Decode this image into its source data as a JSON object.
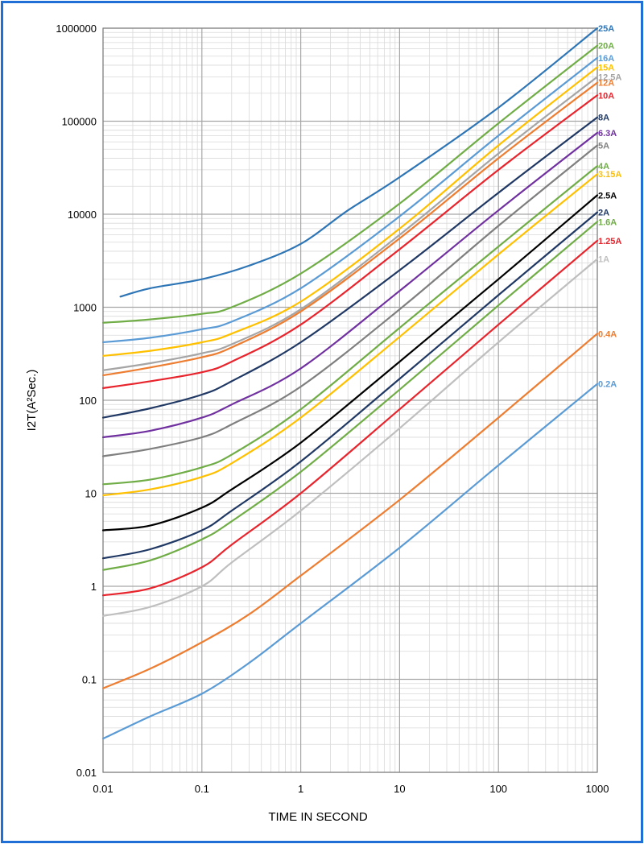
{
  "chart_data": {
    "type": "line",
    "xlabel": "TIME IN SECOND",
    "ylabel": "I2T(A²Sec.)",
    "xscale": "log",
    "yscale": "log",
    "xlim": [
      0.01,
      1000
    ],
    "ylim": [
      0.01,
      1000000
    ],
    "x_tick_labels": [
      "0.01",
      "0.1",
      "1",
      "10",
      "100",
      "1000"
    ],
    "y_tick_labels": [
      "0.01",
      "0.1",
      "1",
      "10",
      "100",
      "1000",
      "10000",
      "100000",
      "1000000"
    ],
    "grid": "major and minor",
    "legend": "labels at right end of each curve",
    "series": [
      {
        "name": "25A",
        "color": "#2e75b6",
        "x": [
          0.015,
          0.03,
          0.1,
          0.3,
          1,
          3,
          10,
          100,
          1000
        ],
        "y": [
          1300,
          1600,
          2000,
          2800,
          4800,
          11000,
          25000,
          140000,
          1000000
        ]
      },
      {
        "name": "20A",
        "color": "#70ad47",
        "x": [
          0.01,
          0.03,
          0.1,
          0.2,
          1,
          10,
          100,
          1000
        ],
        "y": [
          680,
          740,
          850,
          1000,
          2300,
          13000,
          95000,
          650000
        ]
      },
      {
        "name": "16A",
        "color": "#5b9bd5",
        "x": [
          0.01,
          0.03,
          0.1,
          0.2,
          1,
          10,
          100,
          1000
        ],
        "y": [
          420,
          470,
          580,
          700,
          1600,
          9500,
          70000,
          480000
        ]
      },
      {
        "name": "15A",
        "color": "#ffc000",
        "x": [
          0.01,
          0.03,
          0.1,
          0.2,
          1,
          10,
          100,
          1000
        ],
        "y": [
          300,
          340,
          420,
          520,
          1150,
          7000,
          55000,
          380000
        ]
      },
      {
        "name": "12.5A",
        "color": "#a5a5a5",
        "x": [
          0.01,
          0.03,
          0.1,
          0.2,
          1,
          10,
          100,
          1000
        ],
        "y": [
          210,
          250,
          320,
          400,
          950,
          6000,
          45000,
          300000
        ]
      },
      {
        "name": "12A",
        "color": "#ed7d31",
        "x": [
          0.01,
          0.03,
          0.1,
          0.2,
          1,
          10,
          100,
          1000
        ],
        "y": [
          185,
          225,
          290,
          370,
          900,
          5500,
          40000,
          260000
        ]
      },
      {
        "name": "10A",
        "color": "#e8242d",
        "x": [
          0.01,
          0.03,
          0.1,
          0.2,
          1,
          10,
          100,
          1000
        ],
        "y": [
          135,
          160,
          200,
          260,
          650,
          4200,
          30000,
          190000
        ]
      },
      {
        "name": "8A",
        "color": "#203864",
        "x": [
          0.01,
          0.03,
          0.1,
          0.2,
          1,
          10,
          100,
          1000
        ],
        "y": [
          65,
          82,
          115,
          160,
          420,
          2500,
          17000,
          110000
        ]
      },
      {
        "name": "6.3A",
        "color": "#7030a0",
        "x": [
          0.01,
          0.03,
          0.1,
          0.2,
          1,
          10,
          100,
          1000
        ],
        "y": [
          40,
          47,
          65,
          90,
          220,
          1500,
          11000,
          75000
        ]
      },
      {
        "name": "5A",
        "color": "#7f7f7f",
        "x": [
          0.01,
          0.03,
          0.1,
          0.2,
          1,
          10,
          100,
          1000
        ],
        "y": [
          25,
          30,
          40,
          55,
          140,
          950,
          7500,
          55000
        ]
      },
      {
        "name": "4A",
        "color": "#70ad47",
        "x": [
          0.01,
          0.03,
          0.1,
          0.2,
          1,
          10,
          100,
          1000
        ],
        "y": [
          12.5,
          14,
          19,
          26,
          80,
          600,
          4500,
          33000
        ]
      },
      {
        "name": "3.15A",
        "color": "#ffc000",
        "x": [
          0.01,
          0.03,
          0.1,
          0.2,
          1,
          10,
          100,
          1000
        ],
        "y": [
          9.5,
          11,
          15,
          21,
          65,
          480,
          3700,
          27000
        ]
      },
      {
        "name": "2.5A",
        "color": "#000000",
        "x": [
          0.01,
          0.03,
          0.1,
          0.2,
          1,
          10,
          100,
          1000
        ],
        "y": [
          4,
          4.5,
          7,
          11,
          35,
          260,
          2000,
          16000
        ]
      },
      {
        "name": "2A",
        "color": "#203864",
        "x": [
          0.01,
          0.03,
          0.1,
          0.2,
          1,
          10,
          100,
          1000
        ],
        "y": [
          2,
          2.5,
          4,
          6.5,
          22,
          170,
          1350,
          10500
        ]
      },
      {
        "name": "1.6A",
        "color": "#70ad47",
        "x": [
          0.01,
          0.03,
          0.1,
          0.2,
          1,
          10,
          100,
          1000
        ],
        "y": [
          1.5,
          1.9,
          3.2,
          5,
          17,
          130,
          1050,
          8300
        ]
      },
      {
        "name": "1.25A",
        "color": "#e8242d",
        "x": [
          0.01,
          0.03,
          0.1,
          0.2,
          1,
          10,
          100,
          1000
        ],
        "y": [
          0.8,
          0.95,
          1.6,
          2.8,
          10,
          80,
          650,
          5200
        ]
      },
      {
        "name": "1A",
        "color": "#bfbfbf",
        "x": [
          0.01,
          0.03,
          0.1,
          0.2,
          1,
          10,
          100,
          1000
        ],
        "y": [
          0.48,
          0.6,
          1,
          1.8,
          6.5,
          50,
          420,
          3300
        ]
      },
      {
        "name": "0.4A",
        "color": "#ed7d31",
        "x": [
          0.01,
          0.03,
          0.1,
          0.3,
          1,
          10,
          100,
          1000
        ],
        "y": [
          0.08,
          0.13,
          0.25,
          0.5,
          1.3,
          8.5,
          65,
          520
        ]
      },
      {
        "name": "0.2A",
        "color": "#5b9bd5",
        "x": [
          0.01,
          0.03,
          0.1,
          0.3,
          1,
          10,
          100,
          1000
        ],
        "y": [
          0.023,
          0.04,
          0.07,
          0.15,
          0.4,
          2.6,
          20,
          150
        ]
      }
    ]
  }
}
